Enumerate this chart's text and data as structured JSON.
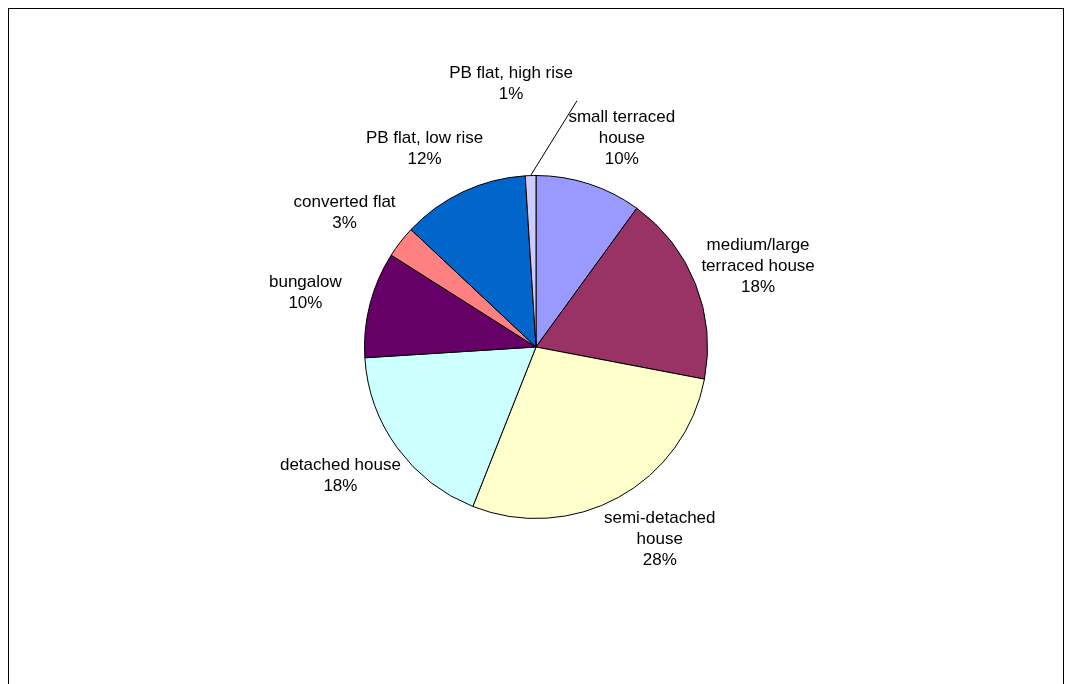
{
  "chart_data": {
    "type": "pie",
    "categories": [
      "small terraced house",
      "medium/large terraced house",
      "semi-detached house",
      "detached house",
      "bungalow",
      "converted flat",
      "PB flat, low rise",
      "PB flat, high rise"
    ],
    "values": [
      10,
      18,
      28,
      18,
      10,
      3,
      12,
      1
    ],
    "colors": [
      "#9999ff",
      "#993366",
      "#ffffcc",
      "#ccffff",
      "#660066",
      "#ff8080",
      "#0066cc",
      "#ccccff"
    ],
    "value_labels": [
      "10%",
      "18%",
      "28%",
      "18%",
      "10%",
      "3%",
      "12%",
      "1%"
    ],
    "legend": false
  }
}
